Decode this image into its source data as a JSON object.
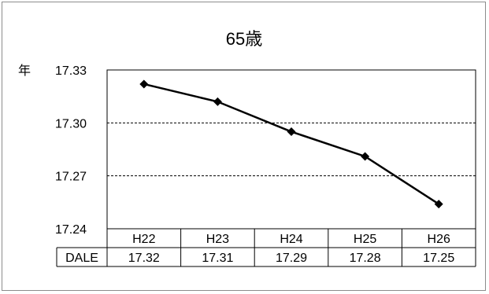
{
  "chart_data": {
    "type": "line",
    "title": "65歳",
    "y_unit": "年",
    "categories": [
      "H22",
      "H23",
      "H24",
      "H25",
      "H26"
    ],
    "series": [
      {
        "name": "DALE",
        "values": [
          17.32,
          17.31,
          17.29,
          17.28,
          17.25
        ]
      }
    ],
    "plot_values": [
      17.322,
      17.312,
      17.295,
      17.281,
      17.254
    ],
    "y_ticks": [
      "17.33",
      "17.30",
      "17.27",
      "17.24"
    ],
    "ylim": [
      17.24,
      17.33
    ],
    "gridlines": "dashed horizontal",
    "marker": "diamond",
    "line_color": "#000000",
    "data_table": true
  }
}
